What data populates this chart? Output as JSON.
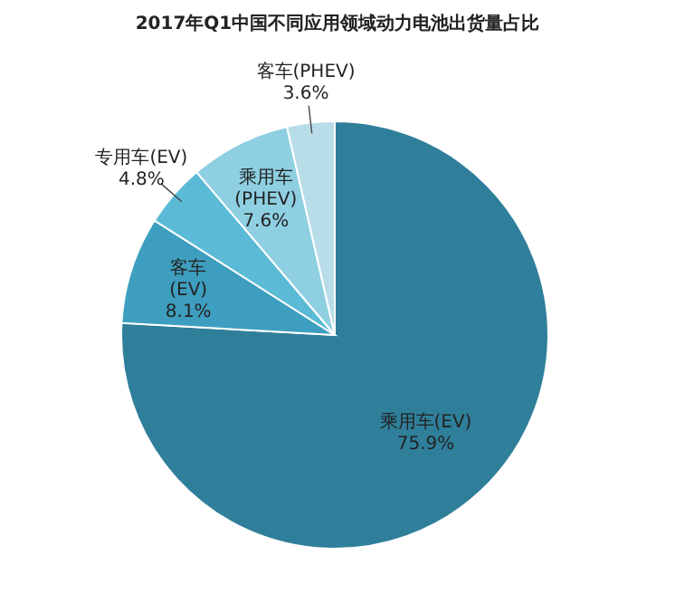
{
  "chart_data": {
    "type": "pie",
    "title": "2017年Q1中国不同应用领域动力电池出货量占比",
    "categories": [
      "乘用车(EV)",
      "客车(EV)",
      "专用车(EV)",
      "乘用车(PHEV)",
      "客车(PHEV)"
    ],
    "values": [
      75.9,
      8.1,
      4.8,
      7.6,
      3.6
    ],
    "colors": [
      "#2f7f9b",
      "#3e9ebf",
      "#5bbbd6",
      "#8ecfe2",
      "#b8dde8"
    ],
    "value_labels": [
      "75.9%",
      "8.1%",
      "4.8%",
      "7.6%",
      "3.6%"
    ]
  }
}
